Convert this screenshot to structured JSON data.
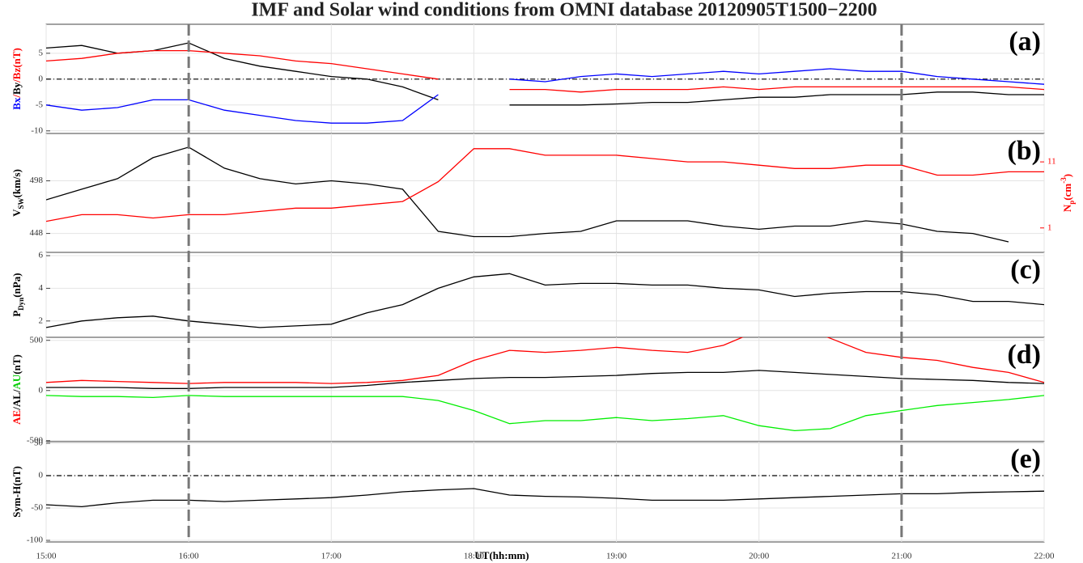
{
  "chart_data": [
    {
      "type": "line",
      "title": "IMF and Solar wind conditions from OMNI database 20120905T1500−2200",
      "panel_label": "(a)",
      "ylabel": [
        {
          "text": "Bx",
          "color": "#0000ff"
        },
        {
          "text": "/",
          "color": "#ff0000"
        },
        {
          "text": "By",
          "color": "#000000"
        },
        {
          "text": "/",
          "color": "#ff0000"
        },
        {
          "text": "Bz(nT)",
          "color": "#ff0000"
        }
      ],
      "x": [
        15,
        15.25,
        15.5,
        15.75,
        16,
        16.25,
        16.5,
        16.75,
        17,
        17.25,
        17.5,
        17.75,
        18,
        18.25,
        18.5,
        18.75,
        19,
        19.25,
        19.5,
        19.75,
        20,
        20.25,
        20.5,
        20.75,
        21,
        21.25,
        21.5,
        21.75,
        22
      ],
      "series": [
        {
          "color": "#000000",
          "values": [
            6,
            6.5,
            5,
            5.5,
            7,
            4,
            2.5,
            1.5,
            0.5,
            0,
            -1.5,
            -4,
            null,
            -5,
            -5,
            -5,
            -4.8,
            -4.5,
            -4.5,
            -4,
            -3.5,
            -3.5,
            -3,
            -3,
            -3,
            -2.5,
            -2.5,
            -3,
            -3
          ]
        },
        {
          "color": "#0000ff",
          "values": [
            -5,
            -6,
            -5.5,
            -4,
            -4,
            -6,
            -7,
            -8,
            -8.5,
            -8.5,
            -8,
            -3,
            null,
            0,
            -0.5,
            0.5,
            1,
            0.5,
            1,
            1.5,
            1,
            1.5,
            2,
            1.5,
            1.5,
            0.5,
            0,
            -0.5,
            -1
          ]
        },
        {
          "color": "#ff0000",
          "values": [
            3.5,
            4,
            5,
            5.5,
            5.5,
            5,
            4.5,
            3.5,
            3,
            2,
            1,
            0,
            null,
            -2,
            -2,
            -2.5,
            -2,
            -2,
            -2,
            -1.5,
            -2,
            -1.5,
            -1.5,
            -1.5,
            -1.5,
            -1.5,
            -1.5,
            -1.5,
            -2
          ]
        }
      ],
      "xlim": [
        15,
        22
      ],
      "xticks": [
        15,
        16,
        17,
        18,
        19,
        20,
        21,
        22
      ],
      "ylim": [
        -10.5,
        10.6
      ],
      "yticks": [
        -10,
        -5,
        0,
        5
      ],
      "ref_line": 0,
      "markers": [
        16,
        21
      ],
      "grid": true
    },
    {
      "type": "line",
      "panel_label": "(b)",
      "ylabel": [
        {
          "text": "V"
        },
        {
          "text": "SW",
          "sub": true
        },
        {
          "text": "(km/s)"
        }
      ],
      "y2label": [
        {
          "text": "N",
          "color": "#ff0000"
        },
        {
          "text": "p",
          "sub": true,
          "color": "#ff0000"
        },
        {
          "text": "(cm",
          "color": "#ff0000"
        },
        {
          "text": "-3",
          "sup": true,
          "color": "#ff0000"
        },
        {
          "text": ")",
          "color": "#ff0000"
        }
      ],
      "x": [
        15,
        15.25,
        15.5,
        15.75,
        16,
        16.25,
        16.5,
        16.75,
        17,
        17.25,
        17.5,
        17.75,
        18,
        18.25,
        18.5,
        18.75,
        19,
        19.25,
        19.5,
        19.75,
        20,
        20.25,
        20.5,
        20.75,
        21,
        21.25,
        21.5,
        21.75,
        22
      ],
      "series": [
        {
          "color": "#000000",
          "values": [
            480,
            490,
            500,
            520,
            530,
            510,
            500,
            495,
            498,
            495,
            490,
            450,
            445,
            445,
            448,
            450,
            460,
            460,
            460,
            455,
            452,
            455,
            455,
            460,
            457,
            450,
            448,
            440,
            null
          ]
        },
        {
          "color": "#ff0000",
          "axis": "y2",
          "values": [
            2,
            3,
            3,
            2.5,
            3,
            3,
            3.5,
            4,
            4,
            4.5,
            5,
            8,
            13,
            13,
            12,
            12,
            12,
            11.5,
            11,
            11,
            10.5,
            10,
            10,
            10.5,
            10.5,
            9,
            9,
            9.5,
            9.5
          ]
        }
      ],
      "xlim": [
        15,
        22
      ],
      "xticks": [
        15,
        16,
        17,
        18,
        19,
        20,
        21,
        22
      ],
      "ylim": [
        430,
        543
      ],
      "yticks": [
        448,
        498
      ],
      "y2lim": [
        -2.7,
        15.3
      ],
      "y2ticks": [
        1,
        11
      ],
      "grid": true
    },
    {
      "type": "line",
      "panel_label": "(c)",
      "ylabel": [
        {
          "text": "P"
        },
        {
          "text": "Dyn",
          "sub": true
        },
        {
          "text": "(nPa)"
        }
      ],
      "x": [
        15,
        15.25,
        15.5,
        15.75,
        16,
        16.25,
        16.5,
        16.75,
        17,
        17.25,
        17.5,
        17.75,
        18,
        18.25,
        18.5,
        18.75,
        19,
        19.25,
        19.5,
        19.75,
        20,
        20.25,
        20.5,
        20.75,
        21,
        21.25,
        21.5,
        21.75,
        22
      ],
      "series": [
        {
          "color": "#000000",
          "values": [
            1.6,
            2,
            2.2,
            2.3,
            2,
            1.8,
            1.6,
            1.7,
            1.8,
            2.5,
            3,
            4,
            4.7,
            4.9,
            4.2,
            4.3,
            4.3,
            4.2,
            4.2,
            4,
            3.9,
            3.5,
            3.7,
            3.8,
            3.8,
            3.6,
            3.2,
            3.2,
            3
          ]
        }
      ],
      "xlim": [
        15,
        22
      ],
      "xticks": [
        15,
        16,
        17,
        18,
        19,
        20,
        21,
        22
      ],
      "ylim": [
        1,
        6.2
      ],
      "yticks": [
        2,
        4,
        6
      ],
      "grid": true
    },
    {
      "type": "line",
      "panel_label": "(d)",
      "ylabel": [
        {
          "text": "AE",
          "color": "#ff0000"
        },
        {
          "text": "/AL/",
          "color": "#000000"
        },
        {
          "text": "AU",
          "color": "#00cc00"
        },
        {
          "text": "(nT)",
          "color": "#000000"
        }
      ],
      "x": [
        15,
        15.25,
        15.5,
        15.75,
        16,
        16.25,
        16.5,
        16.75,
        17,
        17.25,
        17.5,
        17.75,
        18,
        18.25,
        18.5,
        18.75,
        19,
        19.25,
        19.5,
        19.75,
        20,
        20.25,
        20.5,
        20.75,
        21,
        21.25,
        21.5,
        21.75,
        22
      ],
      "series": [
        {
          "color": "#ff0000",
          "values": [
            80,
            100,
            90,
            80,
            70,
            80,
            80,
            80,
            70,
            80,
            100,
            150,
            300,
            400,
            380,
            400,
            430,
            400,
            380,
            450,
            600,
            650,
            520,
            380,
            330,
            300,
            230,
            180,
            80
          ]
        },
        {
          "color": "#000000",
          "values": [
            30,
            30,
            30,
            20,
            20,
            30,
            30,
            30,
            30,
            50,
            80,
            100,
            120,
            130,
            130,
            140,
            150,
            170,
            180,
            180,
            200,
            180,
            160,
            140,
            120,
            110,
            100,
            80,
            70
          ]
        },
        {
          "color": "#00ee00",
          "values": [
            -50,
            -60,
            -60,
            -70,
            -50,
            -60,
            -60,
            -60,
            -60,
            -60,
            -60,
            -100,
            -200,
            -330,
            -300,
            -300,
            -270,
            -300,
            -280,
            -250,
            -350,
            -400,
            -380,
            -250,
            -200,
            -150,
            -120,
            -90,
            -50
          ]
        }
      ],
      "xlim": [
        15,
        22
      ],
      "xticks": [
        15,
        16,
        17,
        18,
        19,
        20,
        21,
        22
      ],
      "ylim": [
        -510,
        530
      ],
      "yticks": [
        -500,
        0,
        500
      ],
      "grid": true
    },
    {
      "type": "line",
      "panel_label": "(e)",
      "xlabel": "UT(hh:mm)",
      "ylabel": [
        {
          "text": "Sym-H(nT)"
        }
      ],
      "x": [
        15,
        15.25,
        15.5,
        15.75,
        16,
        16.25,
        16.5,
        16.75,
        17,
        17.25,
        17.5,
        17.75,
        18,
        18.25,
        18.5,
        18.75,
        19,
        19.25,
        19.5,
        19.75,
        20,
        20.25,
        20.5,
        20.75,
        21,
        21.25,
        21.5,
        21.75,
        22
      ],
      "series": [
        {
          "color": "#000000",
          "values": [
            -45,
            -48,
            -42,
            -38,
            -38,
            -40,
            -38,
            -36,
            -34,
            -30,
            -25,
            -22,
            -20,
            -30,
            -32,
            -33,
            -35,
            -38,
            -38,
            -38,
            -36,
            -34,
            -32,
            -30,
            -28,
            -28,
            -26,
            -25,
            -24
          ]
        }
      ],
      "xlim": [
        15,
        22
      ],
      "xticks": [
        {
          "value": 15,
          "label": "15:00"
        },
        {
          "value": 16,
          "label": "16:00"
        },
        {
          "value": 17,
          "label": "17:00"
        },
        {
          "value": 18,
          "label": "18:00"
        },
        {
          "value": 19,
          "label": "19:00"
        },
        {
          "value": 20,
          "label": "20:00"
        },
        {
          "value": 21,
          "label": "21:00"
        },
        {
          "value": 22,
          "label": "22:00"
        }
      ],
      "ylim": [
        -102.5,
        52.5
      ],
      "yticks": [
        -100,
        -50,
        0,
        50
      ],
      "ref_line": 0,
      "grid": true
    }
  ]
}
